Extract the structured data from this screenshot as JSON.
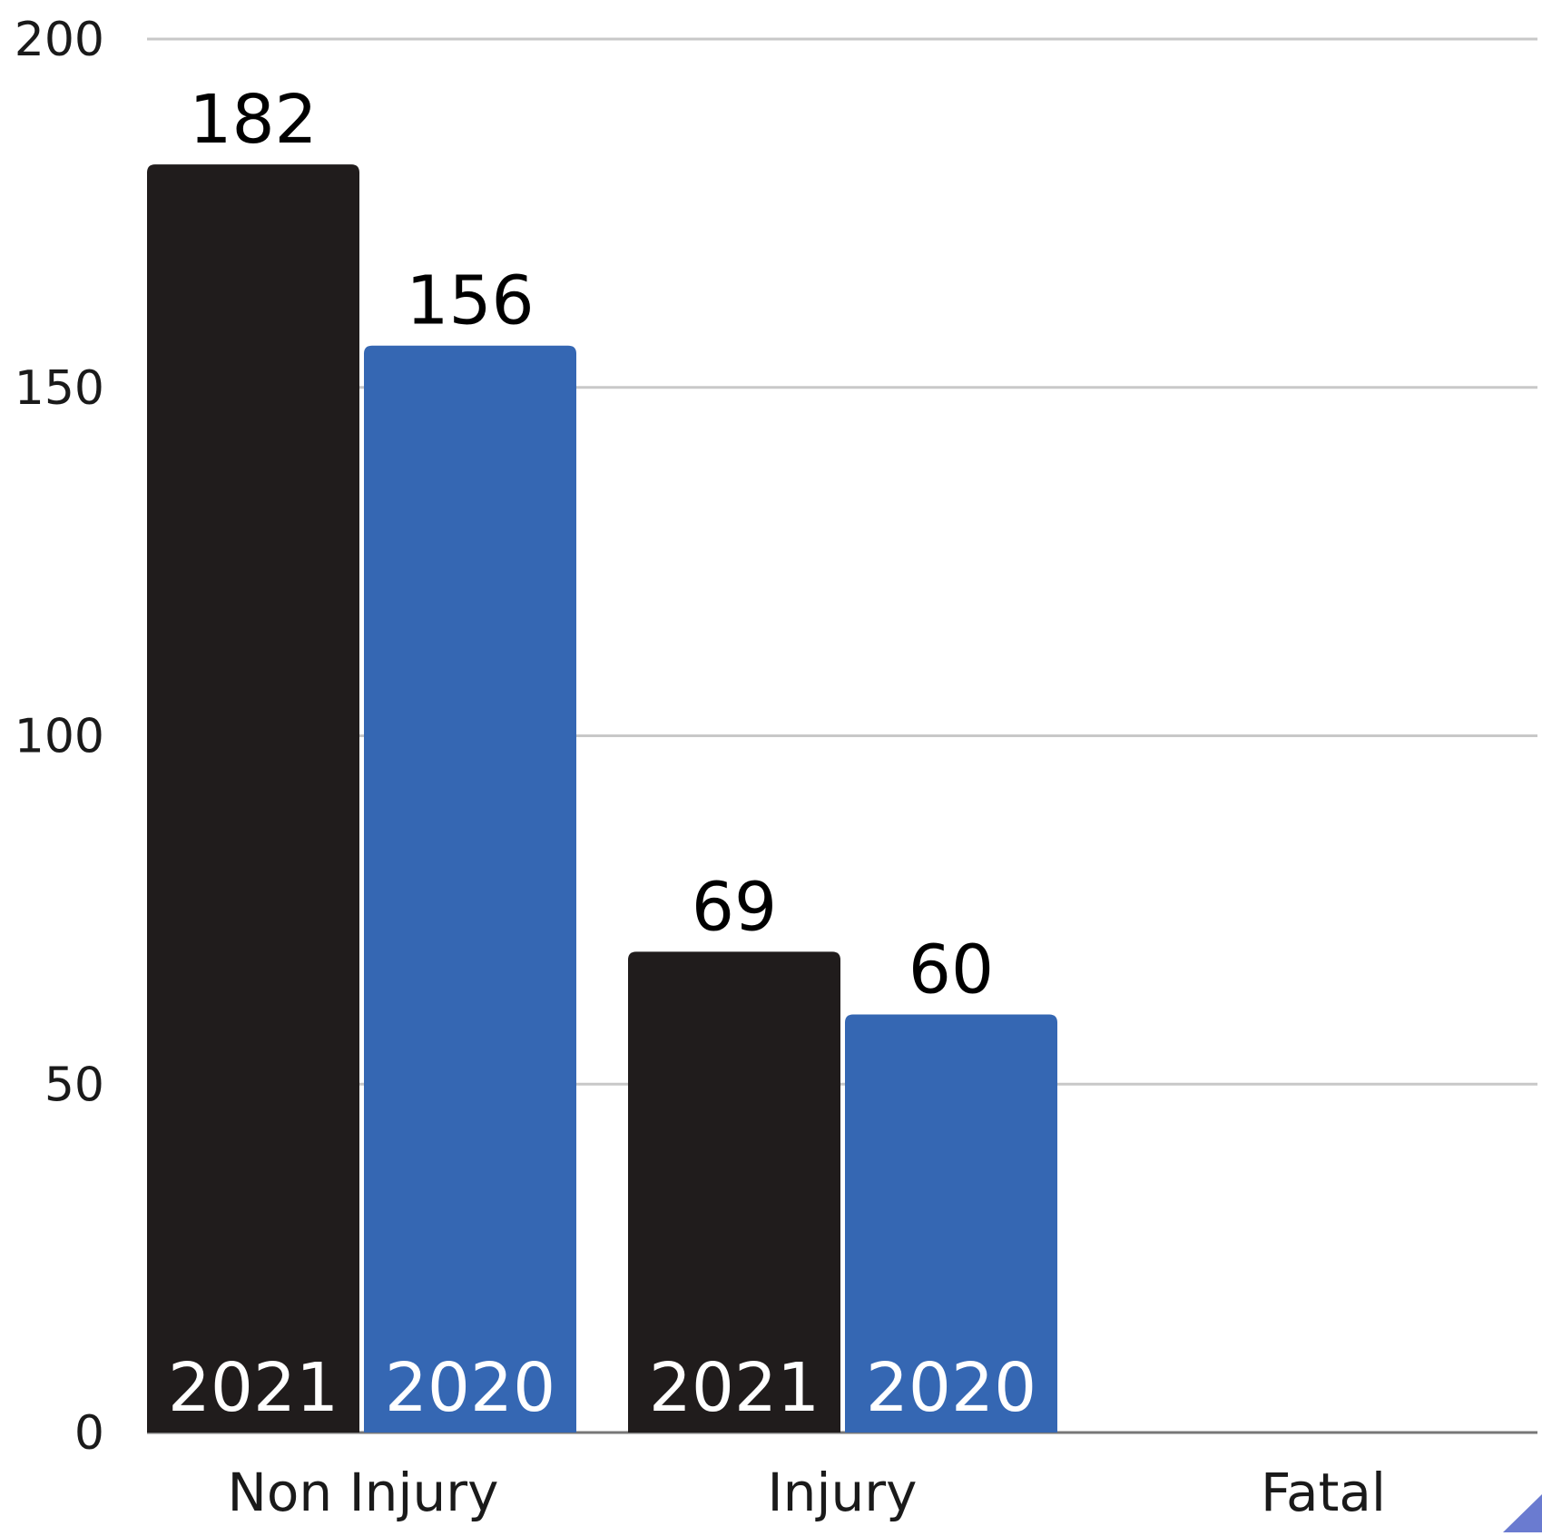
{
  "chart_data": {
    "type": "bar",
    "categories": [
      "Non Injury",
      "Injury",
      "Fatal"
    ],
    "series": [
      {
        "name": "2021",
        "values": [
          182,
          69,
          null
        ],
        "color": "#201c1c"
      },
      {
        "name": "2020",
        "values": [
          156,
          60,
          null
        ],
        "color": "#3567b3"
      }
    ],
    "title": "",
    "xlabel": "",
    "ylabel": "",
    "ylim": [
      0,
      200
    ],
    "yticks": [
      0,
      50,
      100,
      150,
      200
    ],
    "ytick_labels": [
      "0",
      "50",
      "100",
      "150",
      "200"
    ],
    "grid": true,
    "legend": "none",
    "series_labels_inside_bars": true,
    "value_labels": true,
    "corner_accent_color": "#6a7bd0"
  }
}
